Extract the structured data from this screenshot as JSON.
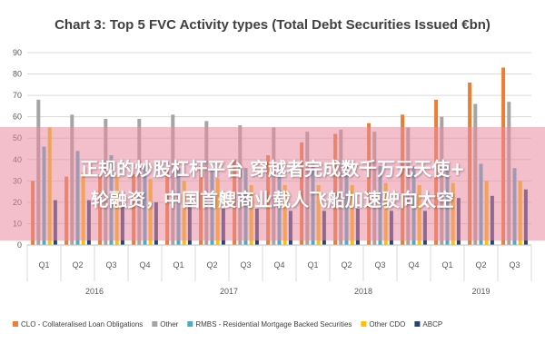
{
  "chart_data": {
    "type": "bar",
    "title": "Chart 3: Top 5 FVC Activity types (Total Debt Securities Issued €bn)",
    "categories": [
      "Q1",
      "Q2",
      "Q3",
      "Q4",
      "Q1",
      "Q2",
      "Q3",
      "Q4",
      "Q1",
      "Q2",
      "Q3",
      "Q4",
      "Q1",
      "Q2",
      "Q3"
    ],
    "years": [
      {
        "label": "2016",
        "start": 0,
        "count": 4
      },
      {
        "label": "2017",
        "start": 4,
        "count": 4
      },
      {
        "label": "2018",
        "start": 8,
        "count": 4
      },
      {
        "label": "2019",
        "start": 12,
        "count": 3
      }
    ],
    "series": [
      {
        "name": "CLO - Collateralised Loan Obligations",
        "color": "#ed7d31",
        "values": [
          30,
          32,
          33,
          33,
          36,
          37,
          40,
          42,
          48,
          52,
          57,
          61,
          68,
          76,
          83
        ]
      },
      {
        "name": "Other",
        "color": "#a5a5a5",
        "values": [
          68,
          61,
          59,
          59,
          61,
          58,
          56,
          55,
          53,
          54,
          53,
          55,
          60,
          66,
          67
        ]
      },
      {
        "name": "RMBS - Residential Mortgage Backed Securities",
        "color": "#4bacc6",
        "values": [
          46,
          44,
          42,
          37,
          36,
          35,
          36,
          36,
          38,
          37,
          37,
          37,
          38,
          38,
          36
        ]
      },
      {
        "name": "Other CDO",
        "color": "#ffc000",
        "values": [
          55,
          34,
          32,
          31,
          30,
          31,
          28,
          28,
          28,
          28,
          29,
          28,
          29,
          30,
          30
        ]
      },
      {
        "name": "ABCP",
        "color": "#264478",
        "values": [
          21,
          21,
          21,
          20,
          19,
          17,
          17,
          16,
          16,
          17,
          16,
          16,
          22,
          23,
          26
        ]
      }
    ],
    "ylim": [
      0,
      90
    ],
    "yticks": [
      0,
      10,
      20,
      30,
      40,
      50,
      60,
      70,
      80,
      90
    ],
    "grid": true,
    "legend_position": "bottom"
  },
  "overlay": {
    "line1": "正规的炒股杠杆平台 穿越者完成数千万元天使+",
    "line2": "轮融资，中国首艘商业载人飞船加速驶向太空"
  }
}
